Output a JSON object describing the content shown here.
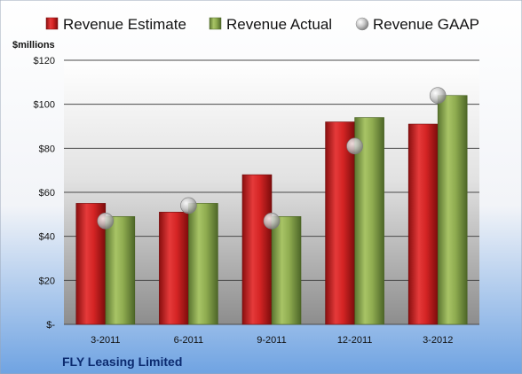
{
  "company_name": "FLY Leasing Limited",
  "chart_data": {
    "type": "bar",
    "ylabel": "$millions",
    "ylim": [
      0,
      120
    ],
    "yticks": [
      0,
      20,
      40,
      60,
      80,
      100,
      120
    ],
    "ytick_labels": [
      "$-",
      "$20",
      "$40",
      "$60",
      "$80",
      "$100",
      "$120"
    ],
    "grid": true,
    "legend_position": "top",
    "categories": [
      "3-2011",
      "6-2011",
      "9-2011",
      "12-2011",
      "3-2012"
    ],
    "series": [
      {
        "name": "Revenue Estimate",
        "kind": "bar",
        "color": "#cc1f1f",
        "values": [
          55,
          51,
          68,
          92,
          91
        ]
      },
      {
        "name": "Revenue Actual",
        "kind": "bar",
        "color": "#8aa84a",
        "values": [
          49,
          55,
          49,
          94,
          104
        ]
      },
      {
        "name": "Revenue GAAP",
        "kind": "marker",
        "color": "#b0b0b0",
        "values": [
          47,
          54,
          47,
          81,
          104
        ]
      }
    ]
  }
}
